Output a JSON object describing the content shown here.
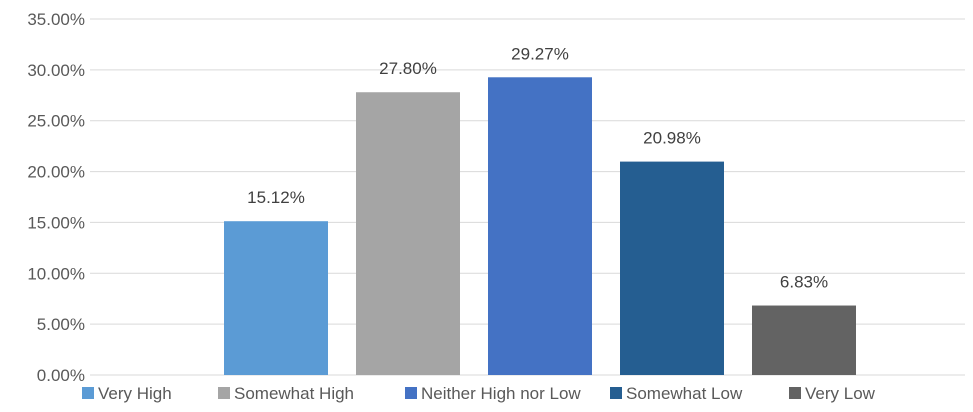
{
  "chart_data": {
    "type": "bar",
    "title": "",
    "xlabel": "",
    "ylabel": "",
    "ylim": [
      0,
      35
    ],
    "y_tick_step": 5,
    "y_tick_format": "percent_2dp",
    "grid": "horizontal",
    "legend": "bottom",
    "categories": [
      "Very High",
      "Somewhat High",
      "Neither High nor Low",
      "Somewhat Low",
      "Very Low"
    ],
    "values": [
      15.12,
      27.8,
      29.27,
      20.98,
      6.83
    ],
    "data_labels": [
      "15.12%",
      "27.80%",
      "29.27%",
      "20.98%",
      "6.83%"
    ],
    "y_tick_labels": [
      "0.00%",
      "5.00%",
      "10.00%",
      "15.00%",
      "20.00%",
      "25.00%",
      "30.00%",
      "35.00%"
    ],
    "colors": [
      "#5b9bd5",
      "#a5a5a5",
      "#4472c4",
      "#255e91",
      "#636363"
    ],
    "colors_meta": {
      "gridline": "#d9d9d9",
      "axis": "#d9d9d9",
      "text": "#595959"
    }
  }
}
